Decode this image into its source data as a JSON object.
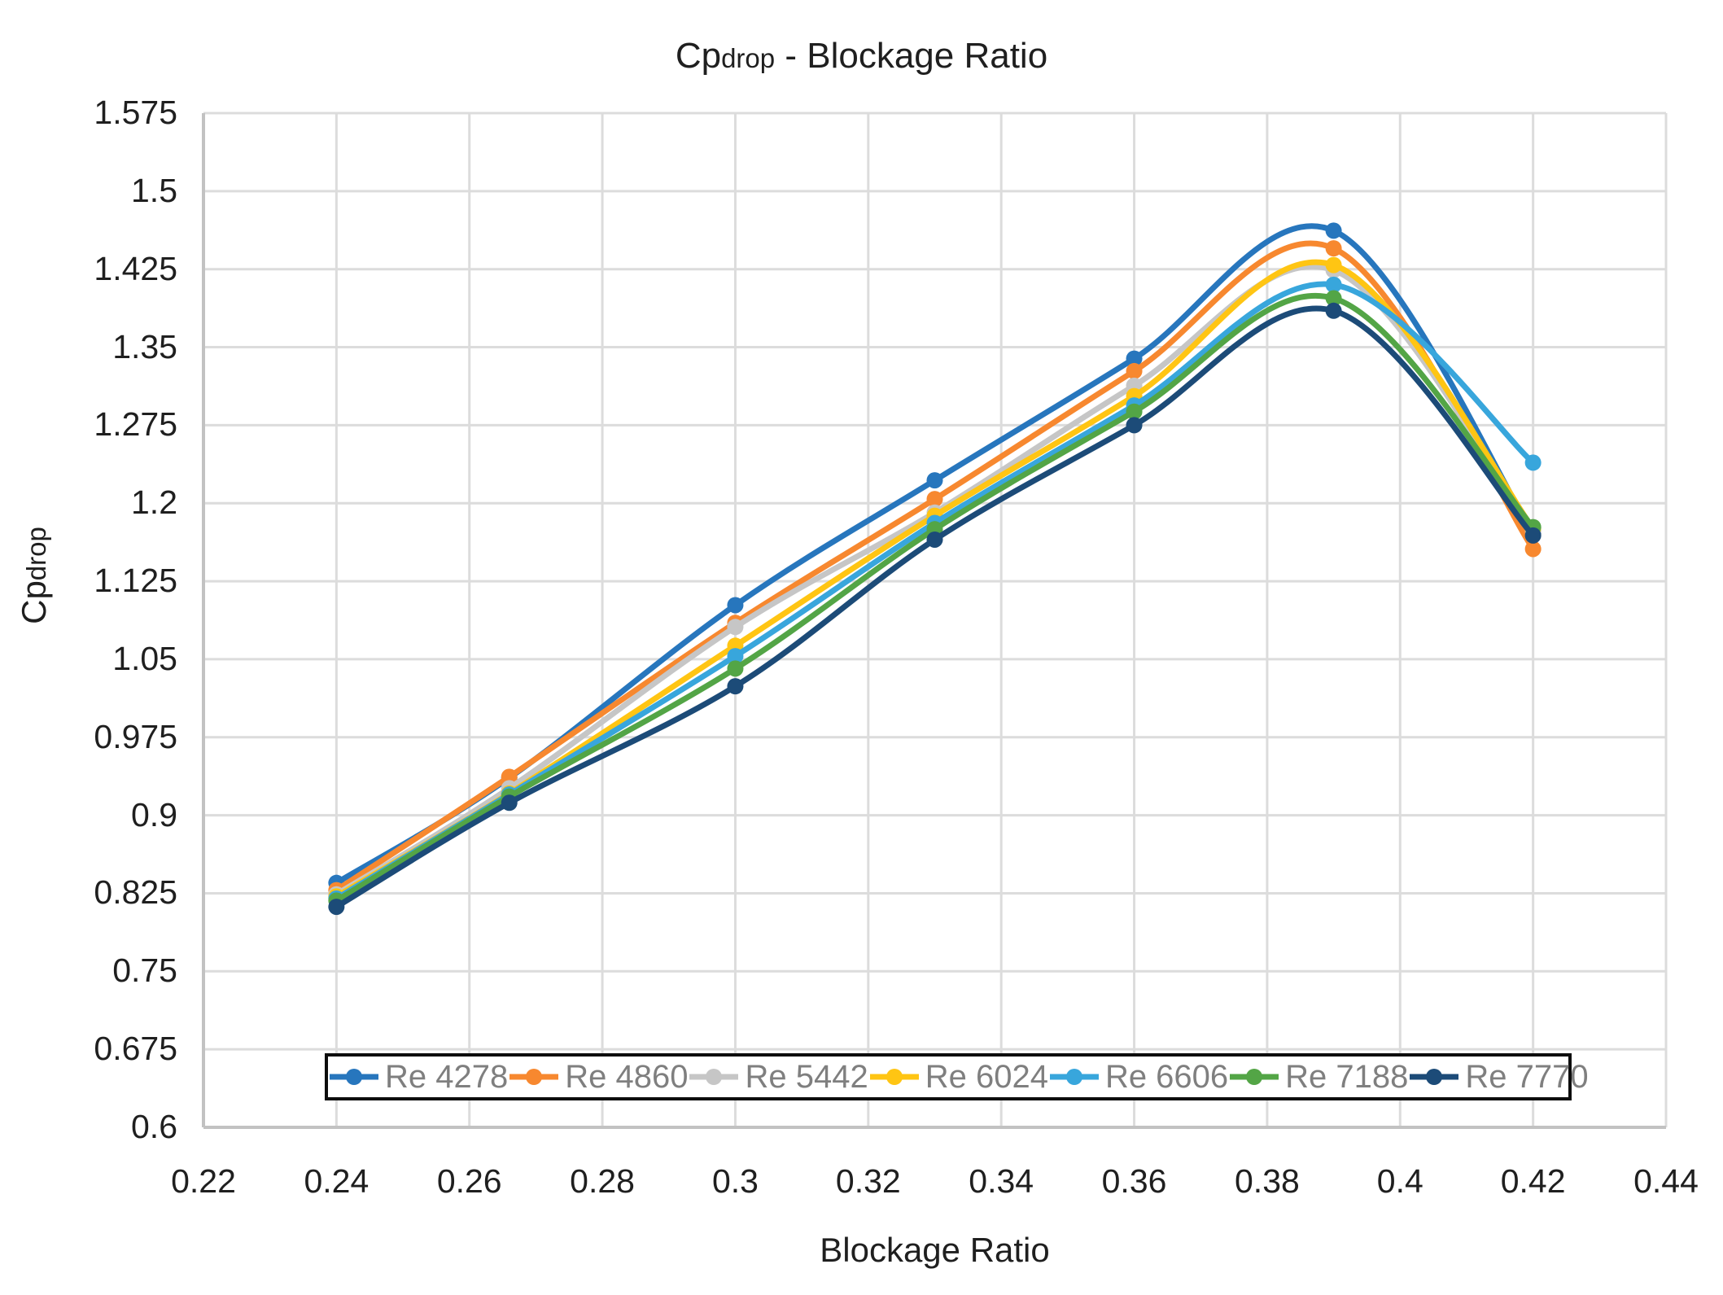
{
  "title": {
    "prefix": "Cp",
    "sub": "drop",
    "suffix": " - Blockage Ratio"
  },
  "axes": {
    "x_label": "Blockage Ratio",
    "y_label_prefix": "Cp",
    "y_label_sub": "drop"
  },
  "chart_data": {
    "type": "line",
    "title": "Cpdrop - Blockage Ratio",
    "xlabel": "Blockage Ratio",
    "ylabel": "Cpdrop",
    "xlim": [
      0.22,
      0.44
    ],
    "ylim": [
      0.6,
      1.575
    ],
    "grid": true,
    "legend_position": "bottom-inside",
    "x_tick_values": [
      0.22,
      0.24,
      0.26,
      0.28,
      0.3,
      0.32,
      0.34,
      0.36,
      0.38,
      0.4,
      0.42,
      0.44
    ],
    "x_tick_labels": [
      "0.22",
      "0.24",
      "0.26",
      "0.28",
      "0.3",
      "0.32",
      "0.34",
      "0.36",
      "0.38",
      "0.4",
      "0.42",
      "0.44"
    ],
    "y_tick_values": [
      0.6,
      0.675,
      0.75,
      0.825,
      0.9,
      0.975,
      1.05,
      1.125,
      1.2,
      1.275,
      1.35,
      1.425,
      1.5,
      1.575
    ],
    "y_tick_labels": [
      "0.6",
      "0.675",
      "0.75",
      "0.825",
      "0.9",
      "0.975",
      "1.05",
      "1.125",
      "1.2",
      "1.275",
      "1.35",
      "1.425",
      "1.5",
      "1.575"
    ],
    "x": [
      0.24,
      0.266,
      0.3,
      0.33,
      0.36,
      0.39,
      0.42
    ],
    "series": [
      {
        "name": "Re 4278",
        "color": "#2776BD",
        "values": [
          0.835,
          0.936,
          1.102,
          1.222,
          1.339,
          1.462,
          1.171
        ]
      },
      {
        "name": "Re 4860",
        "color": "#F7882F",
        "values": [
          0.828,
          0.937,
          1.085,
          1.204,
          1.327,
          1.445,
          1.156
        ]
      },
      {
        "name": "Re 5442",
        "color": "#C6C6C6",
        "values": [
          0.824,
          0.926,
          1.081,
          1.191,
          1.313,
          1.424,
          1.173
        ]
      },
      {
        "name": "Re 6024",
        "color": "#FFC513",
        "values": [
          0.822,
          0.921,
          1.063,
          1.188,
          1.303,
          1.429,
          1.176
        ]
      },
      {
        "name": "Re 6606",
        "color": "#38A6DC",
        "values": [
          0.82,
          0.92,
          1.053,
          1.181,
          1.294,
          1.41,
          1.239
        ]
      },
      {
        "name": "Re 7188",
        "color": "#53A546",
        "values": [
          0.818,
          0.918,
          1.041,
          1.175,
          1.288,
          1.397,
          1.177
        ]
      },
      {
        "name": "Re 7770",
        "color": "#1C4B78",
        "values": [
          0.812,
          0.912,
          1.024,
          1.165,
          1.275,
          1.385,
          1.169
        ]
      }
    ],
    "styles": {
      "gridline_color": "#DCDCDC",
      "axis_line_color": "#C2C2C2",
      "line_width": 7,
      "marker_radius": 10,
      "legend_text_color": "#7f7f7f",
      "legend_border_color": "#0d0d0d"
    }
  }
}
